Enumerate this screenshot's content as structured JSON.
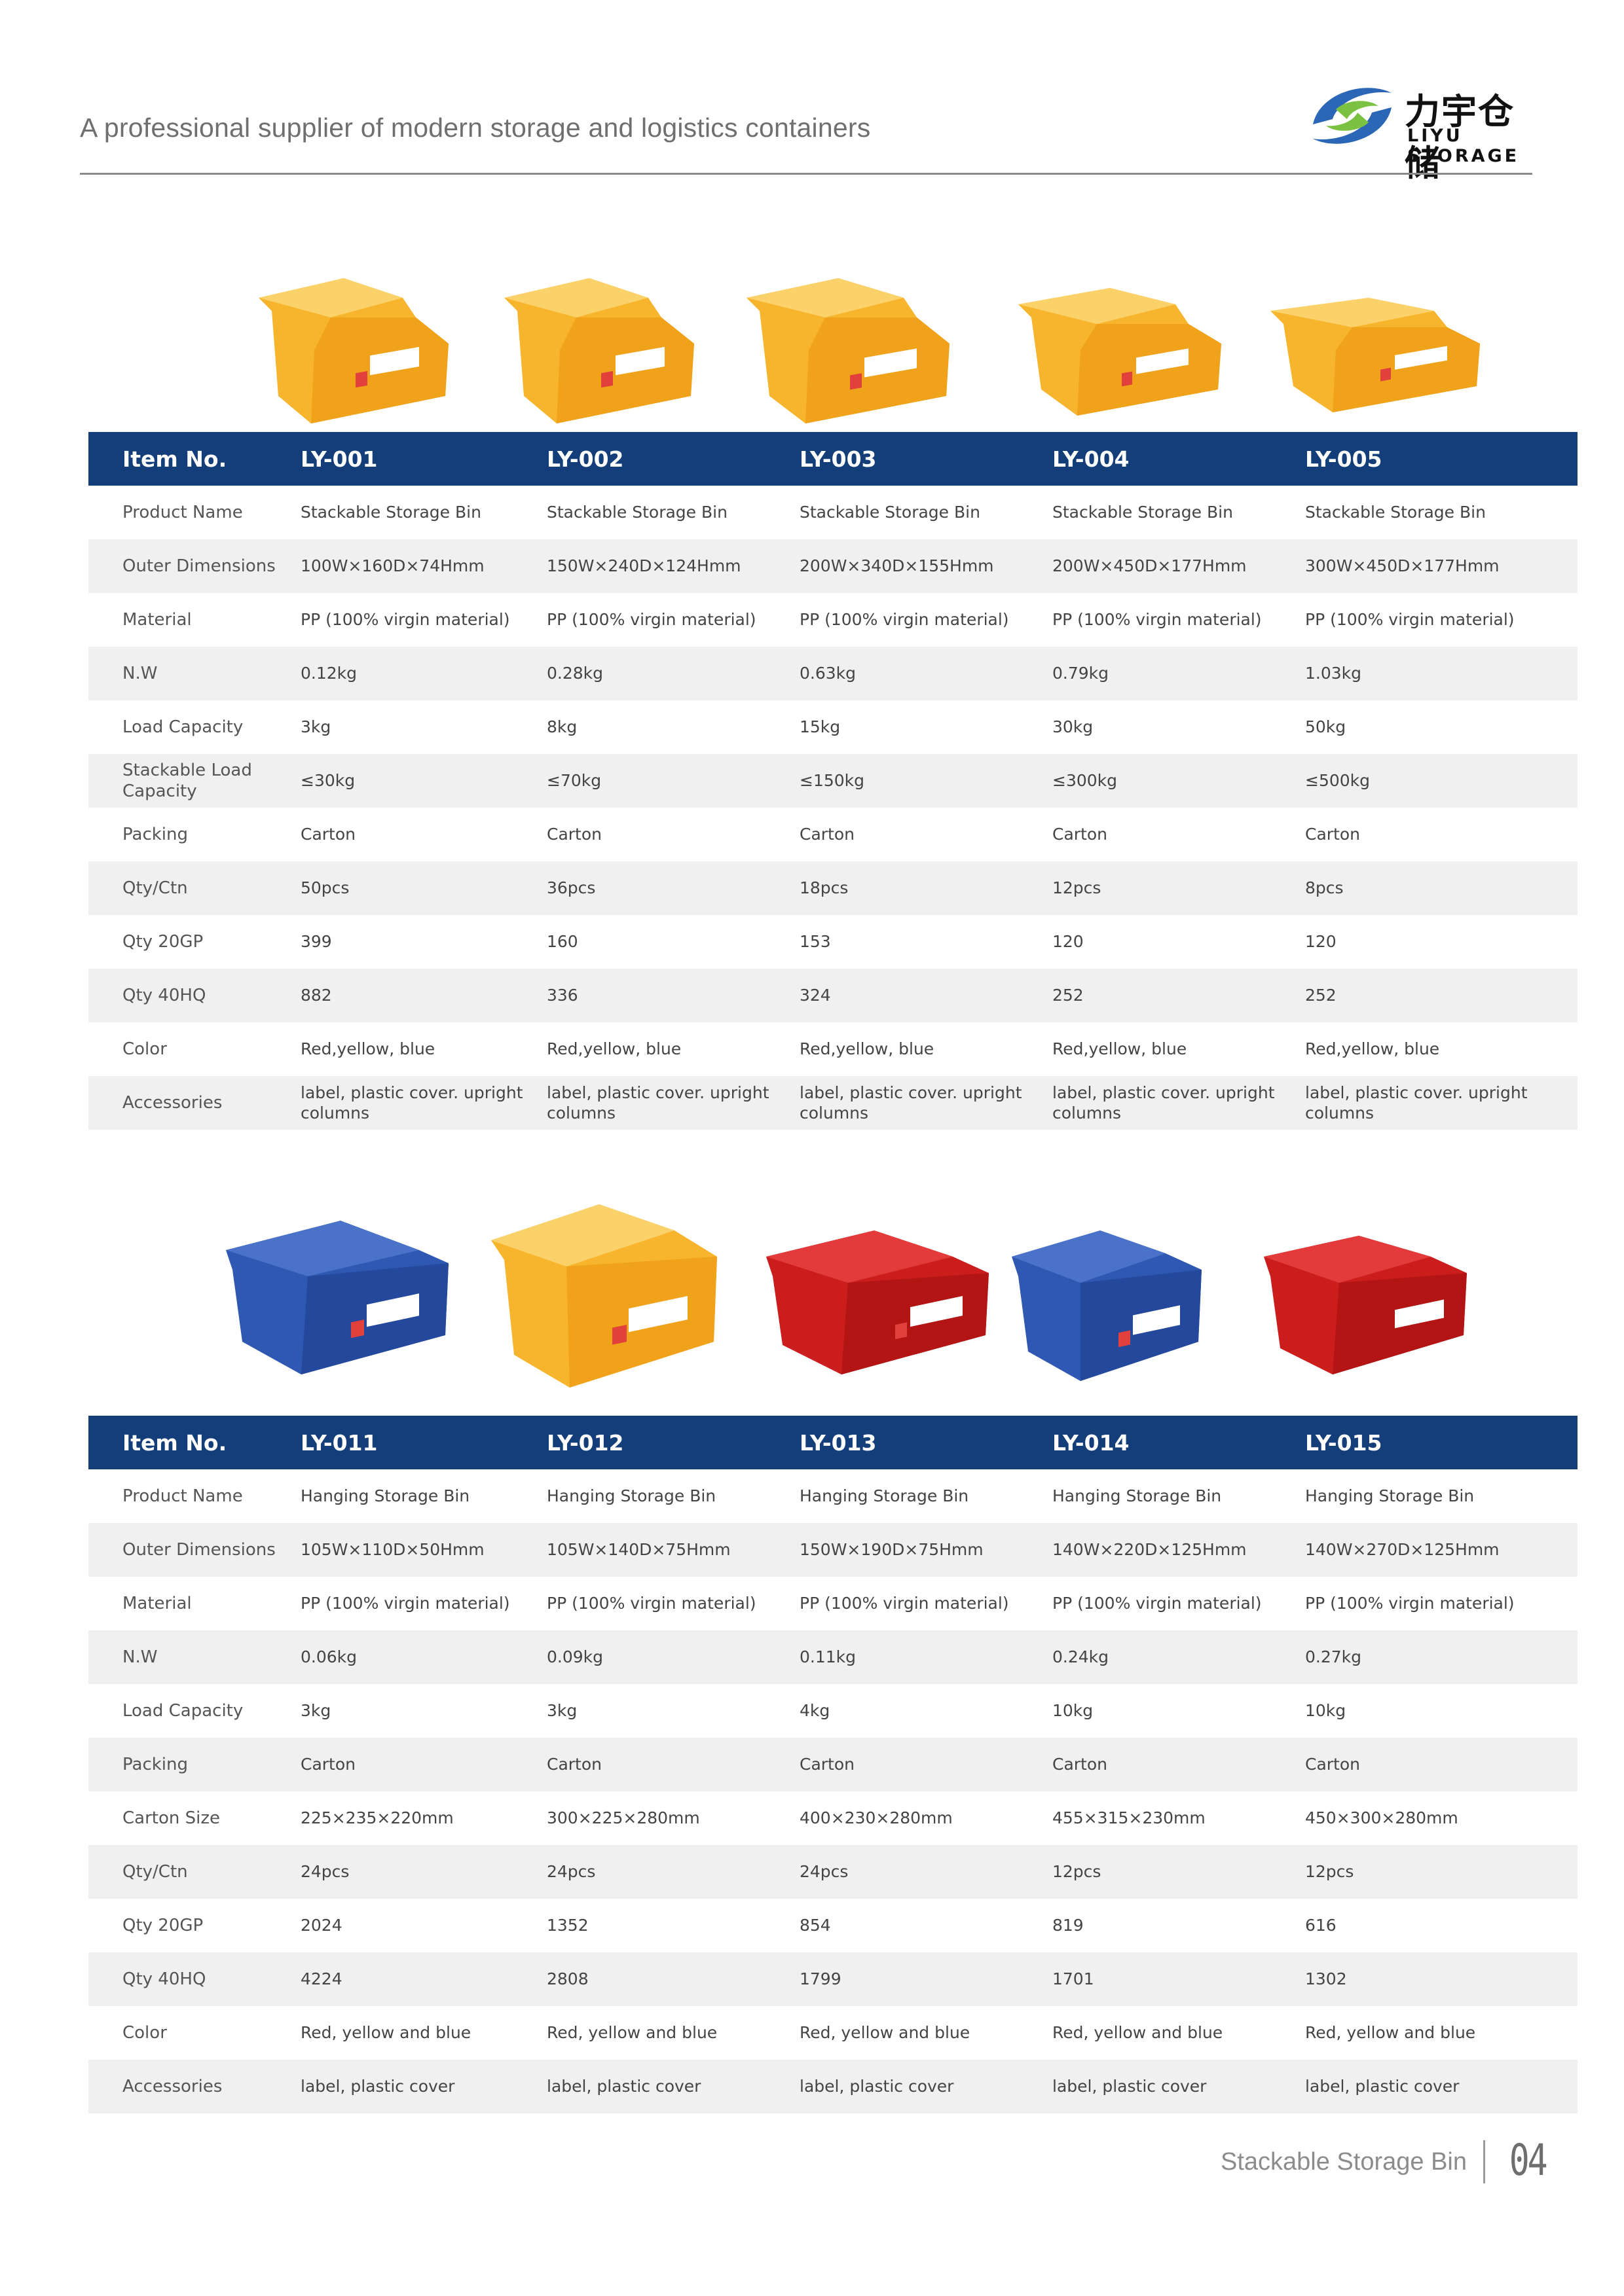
{
  "header": {
    "tagline": "A professional supplier of modern storage and logistics containers",
    "logo_cn": "力宇仓储",
    "logo_en": "LIYU STORAGE"
  },
  "colors": {
    "table_header": "#133e79",
    "row_alt": "#f0f0f0",
    "bin_yellow": "#f5ac22",
    "bin_blue": "#2a4ea5",
    "bin_red": "#c61a1a"
  },
  "table1": {
    "header_label": "Item No.",
    "items": [
      "LY-001",
      "LY-002",
      "LY-003",
      "LY-004",
      "LY-005"
    ],
    "rows": [
      {
        "label": "Product Name",
        "values": [
          "Stackable Storage Bin",
          "Stackable Storage Bin",
          "Stackable Storage Bin",
          "Stackable Storage Bin",
          "Stackable Storage Bin"
        ]
      },
      {
        "label": "Outer Dimensions",
        "values": [
          "100W×160D×74Hmm",
          "150W×240D×124Hmm",
          "200W×340D×155Hmm",
          "200W×450D×177Hmm",
          "300W×450D×177Hmm"
        ]
      },
      {
        "label": "Material",
        "values": [
          "PP (100% virgin material)",
          "PP (100% virgin material)",
          "PP (100% virgin material)",
          "PP (100% virgin material)",
          "PP (100% virgin material)"
        ]
      },
      {
        "label": "N.W",
        "values": [
          "0.12kg",
          "0.28kg",
          "0.63kg",
          "0.79kg",
          "1.03kg"
        ]
      },
      {
        "label": "Load Capacity",
        "values": [
          "3kg",
          "8kg",
          "15kg",
          "30kg",
          "50kg"
        ]
      },
      {
        "label": "Stackable Load Capacity",
        "values": [
          "≤30kg",
          "≤70kg",
          "≤150kg",
          "≤300kg",
          "≤500kg"
        ]
      },
      {
        "label": "Packing",
        "values": [
          "Carton",
          "Carton",
          "Carton",
          "Carton",
          "Carton"
        ]
      },
      {
        "label": "Qty/Ctn",
        "values": [
          "50pcs",
          "36pcs",
          "18pcs",
          "12pcs",
          "8pcs"
        ]
      },
      {
        "label": "Qty 20GP",
        "values": [
          "399",
          "160",
          "153",
          "120",
          "120"
        ]
      },
      {
        "label": "Qty 40HQ",
        "values": [
          "882",
          "336",
          "324",
          "252",
          "252"
        ]
      },
      {
        "label": "Color",
        "values": [
          "Red,yellow, blue",
          "Red,yellow, blue",
          "Red,yellow, blue",
          "Red,yellow, blue",
          "Red,yellow, blue"
        ]
      },
      {
        "label": "Accessories",
        "values": [
          "label, plastic cover. upright columns",
          "label, plastic cover. upright columns",
          "label, plastic cover. upright columns",
          "label, plastic cover. upright columns",
          "label, plastic cover. upright columns"
        ]
      }
    ]
  },
  "table2": {
    "header_label": "Item No.",
    "items": [
      "LY-011",
      "LY-012",
      "LY-013",
      "LY-014",
      "LY-015"
    ],
    "rows": [
      {
        "label": "Product Name",
        "values": [
          "Hanging Storage Bin",
          "Hanging Storage Bin",
          "Hanging Storage Bin",
          "Hanging Storage Bin",
          "Hanging Storage Bin"
        ]
      },
      {
        "label": "Outer Dimensions",
        "values": [
          "105W×110D×50Hmm",
          "105W×140D×75Hmm",
          "150W×190D×75Hmm",
          "140W×220D×125Hmm",
          "140W×270D×125Hmm"
        ]
      },
      {
        "label": "Material",
        "values": [
          "PP (100% virgin material)",
          "PP (100% virgin material)",
          "PP (100% virgin material)",
          "PP (100% virgin material)",
          "PP (100% virgin material)"
        ]
      },
      {
        "label": "N.W",
        "values": [
          "0.06kg",
          "0.09kg",
          "0.11kg",
          "0.24kg",
          "0.27kg"
        ]
      },
      {
        "label": "Load Capacity",
        "values": [
          "3kg",
          "3kg",
          "4kg",
          "10kg",
          "10kg"
        ]
      },
      {
        "label": "Packing",
        "values": [
          "Carton",
          "Carton",
          "Carton",
          "Carton",
          "Carton"
        ]
      },
      {
        "label": "Carton Size",
        "values": [
          "225×235×220mm",
          "300×225×280mm",
          "400×230×280mm",
          "455×315×230mm",
          "450×300×280mm"
        ]
      },
      {
        "label": "Qty/Ctn",
        "values": [
          "24pcs",
          "24pcs",
          "24pcs",
          "12pcs",
          "12pcs"
        ]
      },
      {
        "label": "Qty 20GP",
        "values": [
          "2024",
          "1352",
          "854",
          "819",
          "616"
        ]
      },
      {
        "label": "Qty 40HQ",
        "values": [
          "4224",
          "2808",
          "1799",
          "1701",
          "1302"
        ]
      },
      {
        "label": "Color",
        "values": [
          "Red, yellow and blue",
          "Red, yellow and blue",
          "Red, yellow and blue",
          "Red, yellow and blue",
          "Red, yellow and blue"
        ]
      },
      {
        "label": "Accessories",
        "values": [
          "label, plastic cover",
          "label, plastic cover",
          "label, plastic cover",
          "label, plastic cover",
          "label, plastic cover"
        ]
      }
    ]
  },
  "footer": {
    "section_label": "Stackable Storage Bin",
    "page_number": "04"
  }
}
